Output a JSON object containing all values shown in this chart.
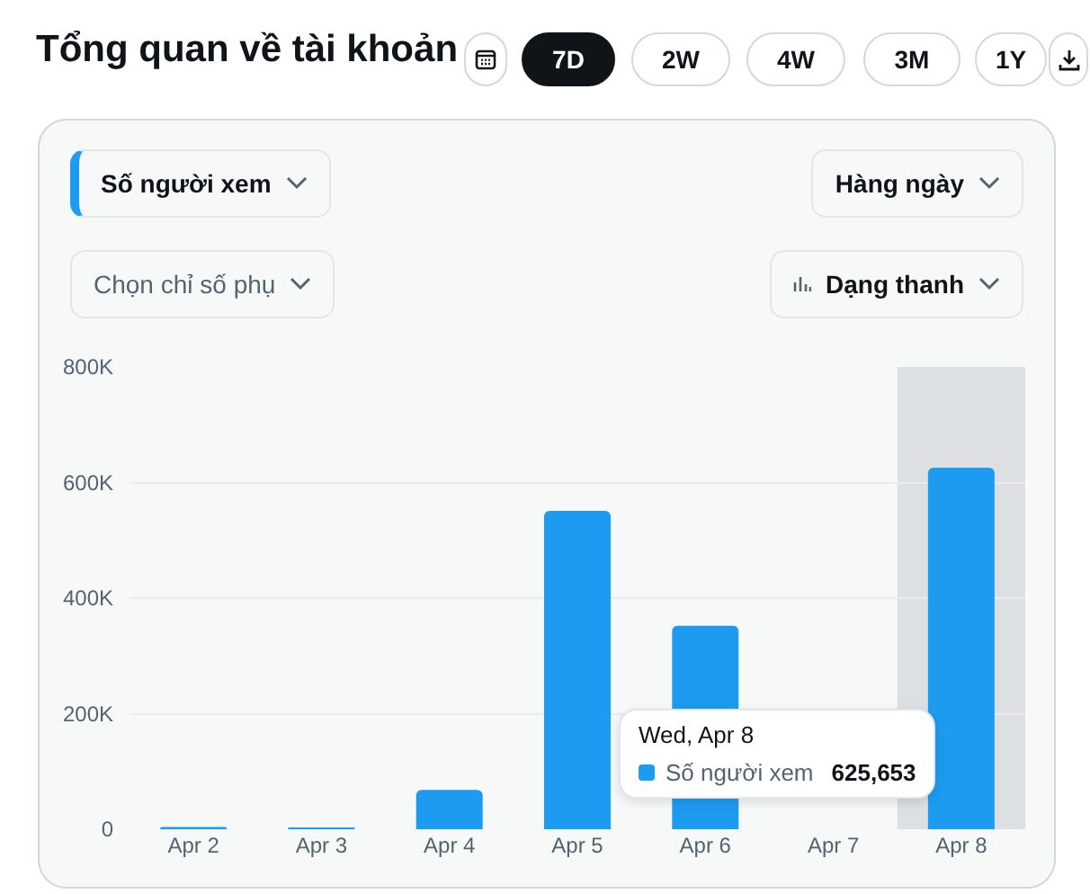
{
  "chart_data": {
    "type": "bar",
    "title": "Tổng quan về tài khoản",
    "categories": [
      "Apr 2",
      "Apr 3",
      "Apr 4",
      "Apr 5",
      "Apr 6",
      "Apr 7",
      "Apr 8"
    ],
    "series": [
      {
        "name": "Số người xem",
        "color": "#1d9bf0",
        "values": [
          4000,
          3000,
          68000,
          551000,
          352000,
          null,
          625653
        ]
      }
    ],
    "ylim": [
      0,
      800000
    ],
    "yticks": [
      {
        "value": 0,
        "label": "0"
      },
      {
        "value": 200000,
        "label": "200K"
      },
      {
        "value": 400000,
        "label": "400K"
      },
      {
        "value": 600000,
        "label": "600K"
      },
      {
        "value": 800000,
        "label": "800K"
      }
    ],
    "grid": "y",
    "legend": "bottom",
    "bands": [
      {
        "axis": "x",
        "from": "Apr 8",
        "to": "Apr 8",
        "color": "#dde0e3"
      }
    ],
    "annotations": [
      "7D",
      "2W",
      "4W",
      "3M",
      "1Y",
      "Số người xem",
      "Hàng ngày",
      "Chọn chỉ số phụ",
      "Dạng thanh",
      "Wed, Apr 8",
      "625,653"
    ]
  }
}
